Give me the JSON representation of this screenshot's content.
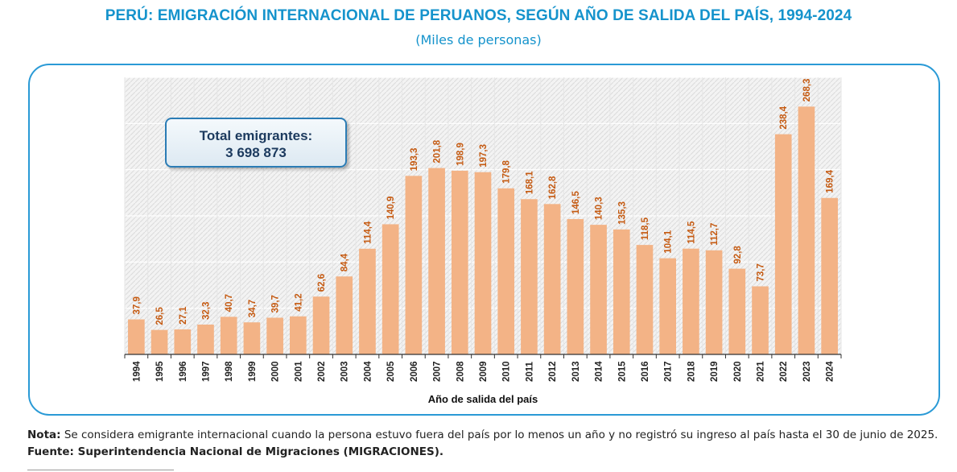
{
  "header": {
    "title": "PERÚ: EMIGRACIÓN INTERNACIONAL DE PERUANOS, SEGÚN AÑO DE SALIDA DEL PAÍS, 1994-2024",
    "subtitle": "(Miles de personas)"
  },
  "total_box": {
    "label": "Total emigrantes:",
    "value": "3 698 873"
  },
  "footer": {
    "note_label": "Nota:",
    "note_text": " Se considera emigrante internacional cuando la persona estuvo fuera del país por lo menos un año y no registró su ingreso al país hasta el 30 de junio de 2025.",
    "source": "Fuente: Superintendencia Nacional de Migraciones (MIGRACIONES)."
  },
  "colors": {
    "title": "#1593cc",
    "bar": "#f3b386",
    "bar_label": "#c55a11",
    "frame": "#2a9ad6"
  },
  "chart_data": {
    "type": "bar",
    "xlabel": "Año de salida del país",
    "ylabel": "",
    "ylim": [
      0,
      300
    ],
    "grid": true,
    "categories": [
      "1994",
      "1995",
      "1996",
      "1997",
      "1998",
      "1999",
      "2000",
      "2001",
      "2002",
      "2003",
      "2004",
      "2005",
      "2006",
      "2007",
      "2008",
      "2009",
      "2010",
      "2011",
      "2012",
      "2013",
      "2014",
      "2015",
      "2016",
      "2017",
      "2018",
      "2019",
      "2020",
      "2021",
      "2022",
      "2023",
      "2024"
    ],
    "values": [
      37.9,
      26.5,
      27.1,
      32.3,
      40.7,
      34.7,
      39.7,
      41.2,
      62.6,
      84.4,
      114.4,
      140.9,
      193.3,
      201.8,
      198.9,
      197.3,
      179.8,
      168.1,
      162.8,
      146.5,
      140.3,
      135.3,
      118.5,
      104.1,
      114.5,
      112.7,
      92.8,
      73.7,
      238.4,
      268.3,
      169.4
    ],
    "labels": [
      "37,9",
      "26,5",
      "27,1",
      "32,3",
      "40,7",
      "34,7",
      "39,7",
      "41,2",
      "62,6",
      "84,4",
      "114,4",
      "140,9",
      "193,3",
      "201,8",
      "198,9",
      "197,3",
      "179,8",
      "168,1",
      "162,8",
      "146,5",
      "140,3",
      "135,3",
      "118,5",
      "104,1",
      "114,5",
      "112,7",
      "92,8",
      "73,7",
      "238,4",
      "268,3",
      "169,4"
    ]
  }
}
